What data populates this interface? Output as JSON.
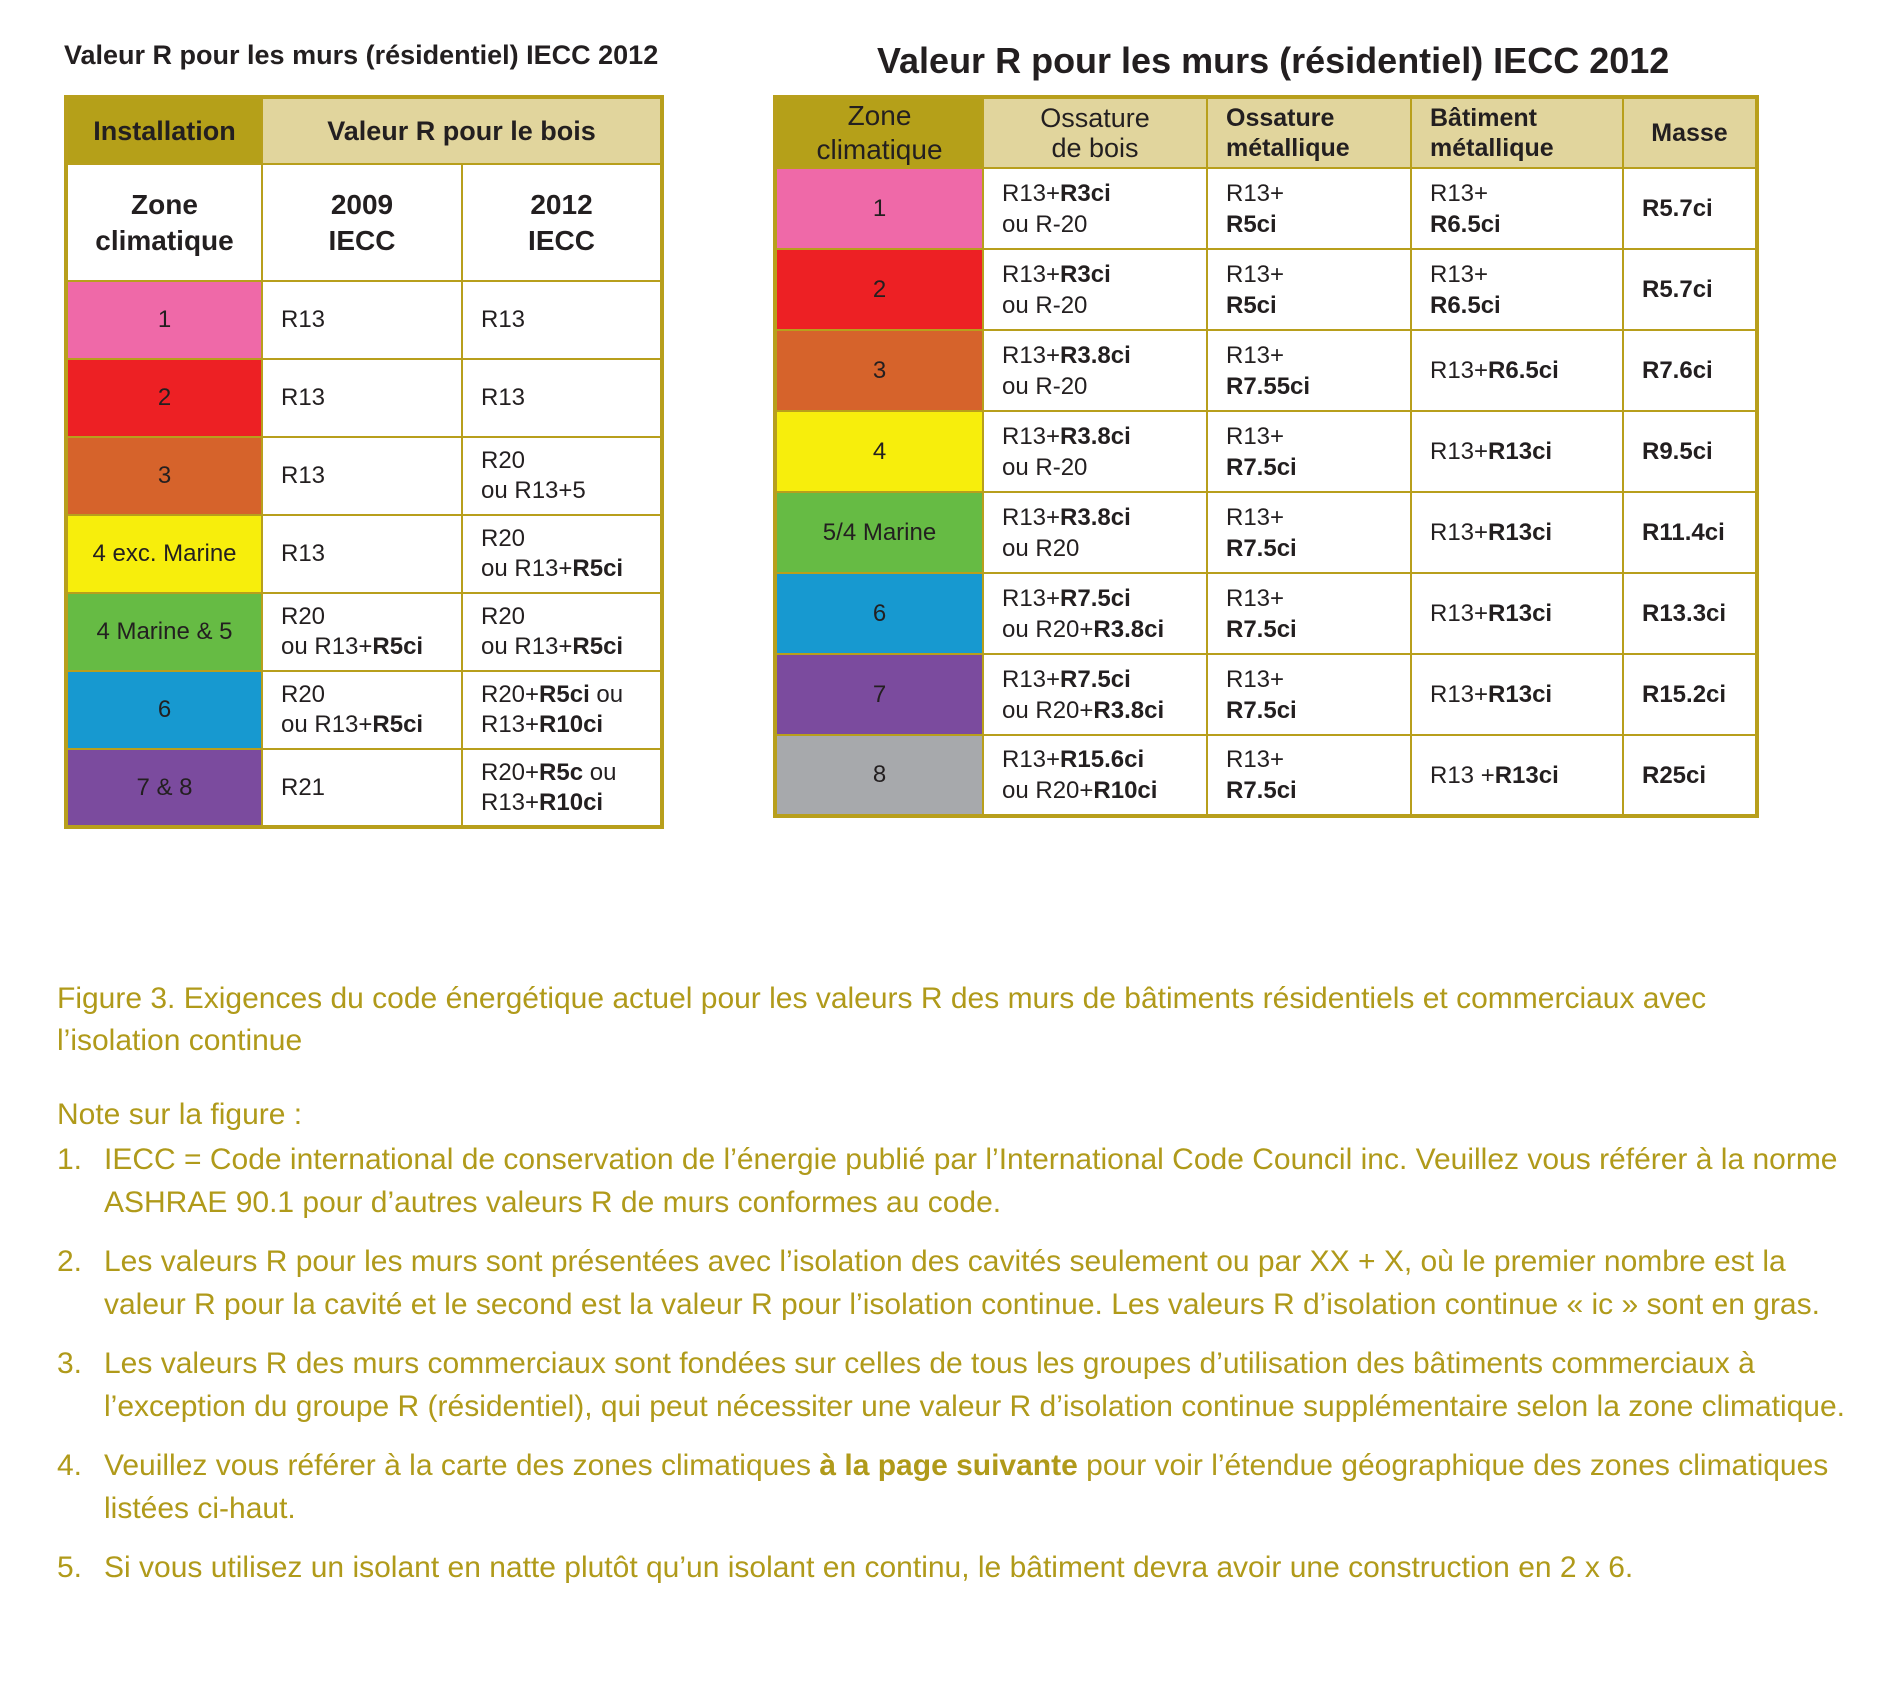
{
  "residential": {
    "title": "Valeur R pour les murs (résidentiel) IECC 2012",
    "header": {
      "installation": "Installation",
      "wood": "Valeur R pour le bois"
    },
    "subheader": {
      "zone_line1": "Zone",
      "zone_line2": "climatique",
      "c2009_line1": "2009",
      "c2009_line2": "IECC",
      "c2012_line1": "2012",
      "c2012_line2": "IECC"
    },
    "rows": [
      {
        "zone": "1",
        "color": "#ef69a8",
        "v2009": [
          "R13"
        ],
        "v2012": [
          "R13"
        ]
      },
      {
        "zone": "2",
        "color": "#ed2024",
        "v2009": [
          "R13"
        ],
        "v2012": [
          "R13"
        ]
      },
      {
        "zone": "3",
        "color": "#d6632b",
        "v2009": [
          "R13"
        ],
        "v2012": [
          "R20",
          "ou R13+5"
        ]
      },
      {
        "zone": "4 exc. Marine",
        "color": "#f7ee0c",
        "v2009": [
          "R13"
        ],
        "v2012": [
          "R20",
          "ou R13+",
          "R5ci"
        ]
      },
      {
        "zone": "4 Marine & 5",
        "color": "#66bb44",
        "v2009": [
          "R20",
          "ou R13+",
          "R5ci"
        ],
        "v2012": [
          "R20",
          "ou R13+",
          "R5ci"
        ]
      },
      {
        "zone": "6",
        "color": "#1799d0",
        "v2009": [
          "R20",
          "ou R13+",
          "R5ci"
        ],
        "v2012": [
          "R20+",
          "R5ci",
          " ou",
          "R13+",
          "R10ci"
        ]
      },
      {
        "zone": "7 & 8",
        "color": "#7b4b9e",
        "v2009": [
          "R21"
        ],
        "v2012": [
          "R20+",
          "R5c",
          " ou",
          "R13+",
          "R10ci"
        ]
      }
    ]
  },
  "commercial": {
    "title": "Valeur R pour les murs (résidentiel) IECC 2012",
    "header": {
      "zone_line1": "Zone",
      "zone_line2": "climatique",
      "wood_line1": "Ossature",
      "wood_line2": "de bois",
      "steel_line1": "Ossature",
      "steel_line2": "métallique",
      "metal_line1": "Bâtiment",
      "metal_line2": "métallique",
      "mass": "Masse"
    },
    "rows": [
      {
        "zone": "1",
        "color": "#ef69a8",
        "wood_a": "R13+",
        "wood_a_b": "R3ci",
        "wood_b": "ou R-20",
        "wood_b_b": "",
        "steel_a": "R13+",
        "steel_b": "R5ci",
        "metal_a": "R13+",
        "metal_b": "R6.5ci",
        "metal_inline": false,
        "mass": "R5.7ci"
      },
      {
        "zone": "2",
        "color": "#ed2024",
        "wood_a": "R13+",
        "wood_a_b": "R3ci",
        "wood_b": "ou R-20",
        "wood_b_b": "",
        "steel_a": "R13+",
        "steel_b": "R5ci",
        "metal_a": "R13+",
        "metal_b": "R6.5ci",
        "metal_inline": false,
        "mass": "R5.7ci"
      },
      {
        "zone": "3",
        "color": "#d6632b",
        "wood_a": "R13+",
        "wood_a_b": "R3.8ci",
        "wood_b": "ou R-20",
        "wood_b_b": "",
        "steel_a": "R13+",
        "steel_b": "R7.55ci",
        "metal_a": "R13+",
        "metal_b": "R6.5ci",
        "metal_inline": true,
        "mass": "R7.6ci"
      },
      {
        "zone": "4",
        "color": "#f7ee0c",
        "wood_a": "R13+",
        "wood_a_b": "R3.8ci",
        "wood_b": "ou R-20",
        "wood_b_b": "",
        "steel_a": "R13+",
        "steel_b": "R7.5ci",
        "metal_a": "R13+",
        "metal_b": "R13ci",
        "metal_inline": true,
        "mass": "R9.5ci"
      },
      {
        "zone": "5/4 Marine",
        "color": "#66bb44",
        "wood_a": "R13+",
        "wood_a_b": "R3.8ci",
        "wood_b": "ou R20",
        "wood_b_b": "",
        "steel_a": "R13+",
        "steel_b": "R7.5ci",
        "metal_a": "R13+",
        "metal_b": "R13ci",
        "metal_inline": true,
        "mass": "R11.4ci"
      },
      {
        "zone": "6",
        "color": "#1799d0",
        "wood_a": "R13+",
        "wood_a_b": "R7.5ci",
        "wood_b": "ou R20+",
        "wood_b_b": "R3.8ci",
        "steel_a": "R13+",
        "steel_b": "R7.5ci",
        "metal_a": "R13+",
        "metal_b": "R13ci",
        "metal_inline": true,
        "mass": "R13.3ci"
      },
      {
        "zone": "7",
        "color": "#7b4b9e",
        "wood_a": "R13+",
        "wood_a_b": "R7.5ci",
        "wood_b": "ou R20+",
        "wood_b_b": "R3.8ci",
        "steel_a": "R13+",
        "steel_b": "R7.5ci",
        "metal_a": "R13+",
        "metal_b": "R13ci",
        "metal_inline": true,
        "mass": "R15.2ci"
      },
      {
        "zone": "8",
        "color": "#a7a9ac",
        "wood_a": "R13+",
        "wood_a_b": "R15.6ci",
        "wood_b": "ou R20+",
        "wood_b_b": "R10ci",
        "steel_a": "R13+",
        "steel_b": "R7.5ci",
        "metal_a": "R13 +",
        "metal_b": "R13ci",
        "metal_inline": true,
        "mass": "R25ci"
      }
    ]
  },
  "caption": "Figure 3.  Exigences du code énergétique actuel pour les valeurs R des murs de bâtiments résidentiels et commerciaux avec l’isolation continue",
  "notes_title": "Note sur la figure :",
  "notes": [
    {
      "num": "1.",
      "text": "IECC = Code international de conservation de l’énergie publié par l’International Code Council inc. Veuillez vous référer à la norme ASHRAE 90.1 pour d’autres valeurs R de murs conformes au code."
    },
    {
      "num": "2.",
      "text": "Les valeurs R pour les murs sont présentées avec l’isolation des cavités seulement ou par XX + X, où le premier nombre est la valeur R pour la cavité et le second est la valeur R pour l’isolation continue. Les valeurs R d’isolation continue « ic » sont en gras."
    },
    {
      "num": "3.",
      "text": "Les valeurs R des murs commerciaux sont fondées sur celles de tous les groupes d’utilisation des bâtiments commerciaux à l’exception du groupe R (résidentiel), qui peut nécessiter une valeur R d’isolation continue supplémentaire selon la zone climatique."
    },
    {
      "num": "4.",
      "pre": "Veuillez vous référer à la carte des zones climatiques ",
      "strong": "à la page suivante",
      "post": " pour voir l’étendue géographique des zones climatiques listées ci-haut."
    },
    {
      "num": "5.",
      "text": "Si vous utilisez un isolant en natte plutôt qu’un isolant en continu, le bâtiment devra avoir une construction en 2 x 6."
    }
  ]
}
